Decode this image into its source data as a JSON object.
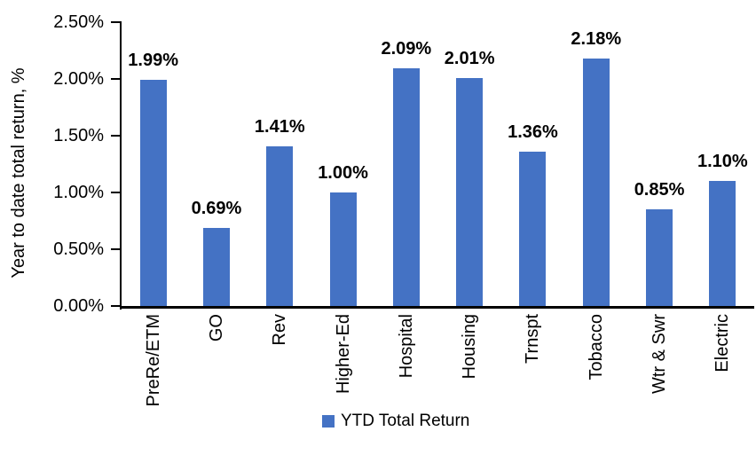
{
  "chart_data": {
    "type": "bar",
    "title": "",
    "xlabel": "",
    "ylabel": "Year to date total return, %",
    "categories": [
      "PreRe/ETM",
      "GO",
      "Rev",
      "Higher-Ed",
      "Hospital",
      "Housing",
      "Trnspt",
      "Tobacco",
      "Wtr & Swr",
      "Electric"
    ],
    "values": [
      1.99,
      0.69,
      1.41,
      1.0,
      2.09,
      2.01,
      1.36,
      2.18,
      0.85,
      1.1
    ],
    "value_labels": [
      "1.99%",
      "0.69%",
      "1.41%",
      "1.00%",
      "2.09%",
      "2.01%",
      "1.36%",
      "2.18%",
      "0.85%",
      "1.10%"
    ],
    "y_ticks": [
      {
        "label": "0.00%",
        "value": 0.0
      },
      {
        "label": "0.50%",
        "value": 0.5
      },
      {
        "label": "1.00%",
        "value": 1.0
      },
      {
        "label": "1.50%",
        "value": 1.5
      },
      {
        "label": "2.00%",
        "value": 2.0
      },
      {
        "label": "2.50%",
        "value": 2.5
      }
    ],
    "ylim": [
      0,
      2.5
    ],
    "grid": false,
    "bar_color": "#4472C4",
    "axis_color": "#000000",
    "legend": {
      "label": "YTD Total Return",
      "marker_color": "#4472C4",
      "position": "bottom-center"
    }
  }
}
